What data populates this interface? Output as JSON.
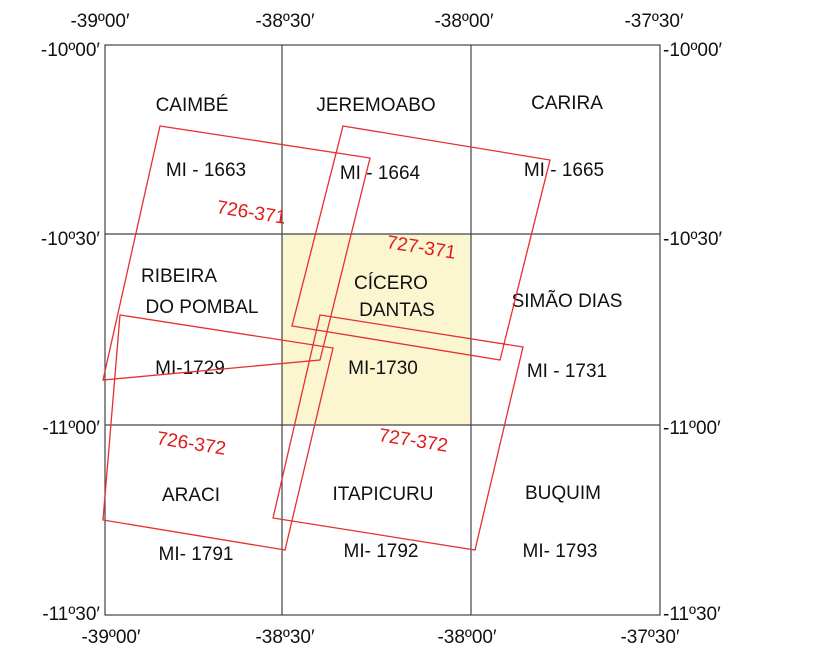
{
  "map": {
    "highlight_color": "#fbf6d0",
    "grid_color": "#444444",
    "footprint_color": "#e53030",
    "lon_labels_top": [
      "-39º00′",
      "-38º30′",
      "-38º00′",
      "-37º30′"
    ],
    "lon_labels_bottom": [
      "-39º00′",
      "-38º30′",
      "-38º00′",
      "-37º30′"
    ],
    "lat_labels_left": [
      "-10º00′",
      "-10º30′",
      "-11º00′",
      "-11º30′"
    ],
    "lat_labels_right": [
      "-10º00′",
      "-10º30′",
      "-11º00′",
      "-11º30′"
    ],
    "sheets": [
      {
        "name": "CAIMBÉ",
        "name2": "",
        "code": "MI - 1663",
        "highlighted": false
      },
      {
        "name": "JEREMOABO",
        "name2": "",
        "code": "MI - 1664",
        "highlighted": false
      },
      {
        "name": "CARIRA",
        "name2": "",
        "code": "MI - 1665",
        "highlighted": false
      },
      {
        "name": "RIBEIRA",
        "name2": "DO POMBAL",
        "code": "MI-1729",
        "highlighted": false
      },
      {
        "name": "CÍCERO",
        "name2": "DANTAS",
        "code": "MI-1730",
        "highlighted": true
      },
      {
        "name": "SIMÃO DIAS",
        "name2": "",
        "code": "MI - 1731",
        "highlighted": false
      },
      {
        "name": "ARACI",
        "name2": "",
        "code": "MI- 1791",
        "highlighted": false
      },
      {
        "name": "ITAPICURU",
        "name2": "",
        "code": "MI- 1792",
        "highlighted": false
      },
      {
        "name": "BUQUIM",
        "name2": "",
        "code": "MI- 1793",
        "highlighted": false
      }
    ],
    "scenes": [
      {
        "label": "726-371"
      },
      {
        "label": "727-371"
      },
      {
        "label": "726-372"
      },
      {
        "label": "727-372"
      }
    ]
  }
}
